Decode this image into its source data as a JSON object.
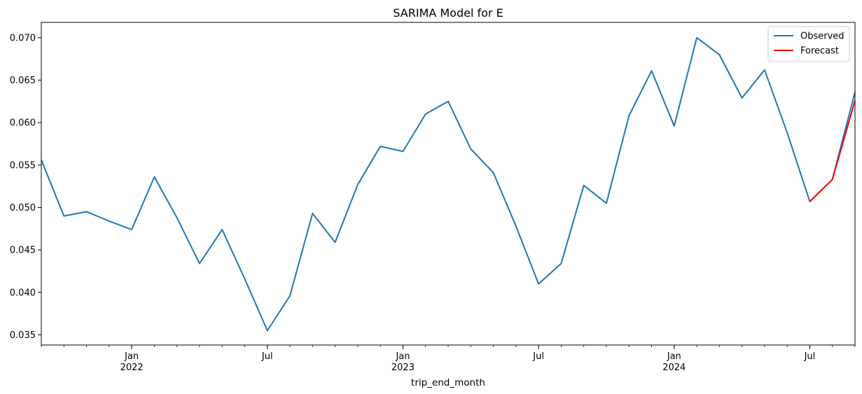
{
  "chart_data": {
    "type": "line",
    "title": "SARIMA Model for E",
    "xlabel": "trip_end_month",
    "ylabel": "",
    "ylim": [
      0.0338,
      0.0718
    ],
    "xlim": [
      "2021-09",
      "2024-09"
    ],
    "y_ticks": [
      "0.035",
      "0.040",
      "0.045",
      "0.050",
      "0.055",
      "0.060",
      "0.065",
      "0.070"
    ],
    "x_major_ticks": [
      {
        "month": "2022-01",
        "label": "Jan",
        "year": "2022"
      },
      {
        "month": "2022-07",
        "label": "Jul",
        "year": ""
      },
      {
        "month": "2023-01",
        "label": "Jan",
        "year": "2023"
      },
      {
        "month": "2023-07",
        "label": "Jul",
        "year": ""
      },
      {
        "month": "2024-01",
        "label": "Jan",
        "year": "2024"
      },
      {
        "month": "2024-07",
        "label": "Jul",
        "year": ""
      }
    ],
    "legend_position": "top-right",
    "grid": false,
    "series": [
      {
        "name": "Observed",
        "color": "#1f77b4",
        "x": [
          "2021-09",
          "2021-10",
          "2021-11",
          "2021-12",
          "2022-01",
          "2022-02",
          "2022-03",
          "2022-04",
          "2022-05",
          "2022-06",
          "2022-07",
          "2022-08",
          "2022-09",
          "2022-10",
          "2022-11",
          "2022-12",
          "2023-01",
          "2023-02",
          "2023-03",
          "2023-04",
          "2023-05",
          "2023-06",
          "2023-07",
          "2023-08",
          "2023-09",
          "2023-10",
          "2023-11",
          "2023-12",
          "2024-01",
          "2024-02",
          "2024-03",
          "2024-04",
          "2024-05",
          "2024-06",
          "2024-07",
          "2024-08",
          "2024-09"
        ],
        "values": [
          0.0556,
          0.049,
          0.0495,
          0.0484,
          0.0474,
          0.0536,
          0.0488,
          0.0434,
          0.0474,
          0.0416,
          0.0355,
          0.0396,
          0.0493,
          0.0459,
          0.0527,
          0.0572,
          0.0566,
          0.061,
          0.0625,
          0.0569,
          0.0541,
          0.0478,
          0.041,
          0.0434,
          0.0526,
          0.0505,
          0.0608,
          0.0661,
          0.0596,
          0.07,
          0.068,
          0.0629,
          0.0662,
          0.0588,
          0.0507,
          0.0533,
          0.0636
        ]
      },
      {
        "name": "Forecast",
        "color": "#ff0000",
        "x": [
          "2024-07",
          "2024-08",
          "2024-09"
        ],
        "values": [
          0.0507,
          0.0533,
          0.0626
        ]
      }
    ]
  }
}
